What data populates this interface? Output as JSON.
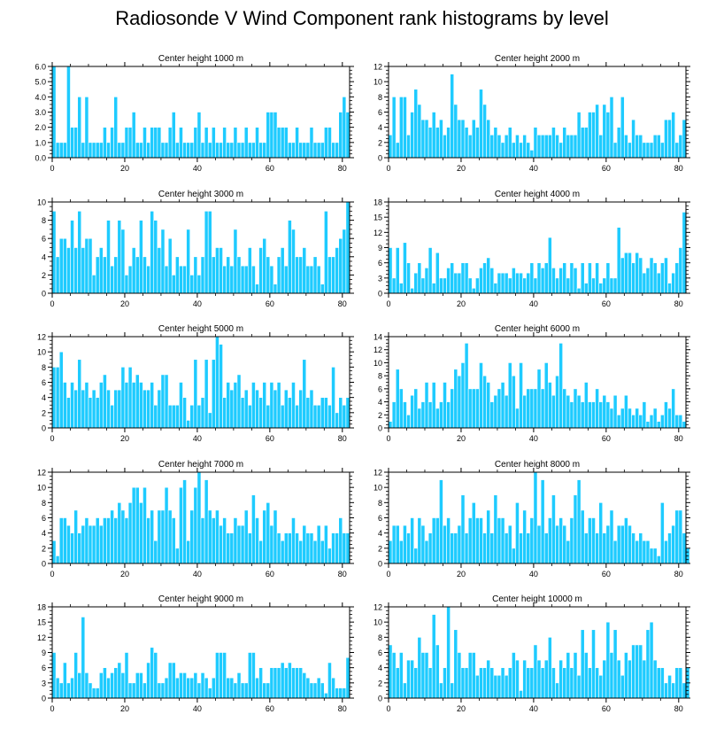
{
  "title": "Radiosonde V Wind Component rank histograms by level",
  "colors": {
    "bar": "#1ecbff",
    "bar_edge": "#ffffff",
    "axis": "#000000"
  },
  "chart_data": [
    {
      "type": "bar",
      "title": "Center height 1000 m",
      "xlim": [
        0,
        82
      ],
      "xticks": [
        0,
        20,
        40,
        60,
        80
      ],
      "ylim": [
        0,
        6
      ],
      "yticks": [
        0,
        1,
        2,
        3,
        4,
        5,
        6
      ],
      "yticklabels": [
        "0.0",
        "1.0",
        "2.0",
        "3.0",
        "4.0",
        "5.0",
        "6.0"
      ],
      "values": [
        6,
        1,
        1,
        1,
        6,
        2,
        2,
        4,
        1,
        4,
        1,
        1,
        1,
        1,
        2,
        1,
        2,
        4,
        1,
        1,
        2,
        2,
        3,
        1,
        1,
        2,
        1,
        2,
        2,
        2,
        1,
        1,
        2,
        3,
        1,
        2,
        1,
        1,
        1,
        2,
        3,
        1,
        2,
        1,
        2,
        1,
        1,
        2,
        1,
        1,
        2,
        1,
        1,
        2,
        1,
        1,
        2,
        1,
        1,
        3,
        3,
        3,
        2,
        2,
        2,
        1,
        1,
        2,
        1,
        1,
        1,
        2,
        1,
        1,
        1,
        2,
        2,
        1,
        1,
        3,
        4,
        3
      ]
    },
    {
      "type": "bar",
      "title": "Center height 2000 m",
      "xlim": [
        0,
        82
      ],
      "xticks": [
        0,
        20,
        40,
        60,
        80
      ],
      "ylim": [
        0,
        12
      ],
      "yticks": [
        0,
        2,
        4,
        6,
        8,
        10,
        12
      ],
      "values": [
        3,
        8,
        2,
        8,
        8,
        3,
        6,
        9,
        7,
        5,
        5,
        4,
        6,
        4,
        5,
        3,
        4,
        11,
        7,
        5,
        5,
        4,
        3,
        5,
        4,
        9,
        7,
        5,
        3,
        4,
        3,
        2,
        3,
        4,
        2,
        3,
        2,
        3,
        2,
        1,
        4,
        3,
        3,
        3,
        3,
        4,
        3,
        2,
        4,
        3,
        3,
        3,
        6,
        4,
        4,
        6,
        6,
        7,
        3,
        7,
        6,
        8,
        2,
        4,
        8,
        3,
        2,
        5,
        3,
        3,
        2,
        2,
        2,
        3,
        3,
        2,
        5,
        5,
        6,
        2,
        3,
        5
      ]
    },
    {
      "type": "bar",
      "title": "Center height 3000 m",
      "xlim": [
        0,
        82
      ],
      "xticks": [
        0,
        20,
        40,
        60,
        80
      ],
      "ylim": [
        0,
        10
      ],
      "yticks": [
        0,
        2,
        4,
        6,
        8,
        10
      ],
      "values": [
        9,
        4,
        6,
        6,
        5,
        8,
        5,
        9,
        5,
        6,
        6,
        2,
        4,
        5,
        4,
        8,
        3,
        4,
        8,
        7,
        2,
        3,
        5,
        4,
        8,
        4,
        3,
        9,
        8,
        5,
        7,
        3,
        6,
        2,
        4,
        3,
        3,
        7,
        2,
        4,
        2,
        4,
        9,
        9,
        4,
        5,
        5,
        3,
        4,
        3,
        7,
        4,
        3,
        3,
        5,
        3,
        1,
        5,
        6,
        4,
        3,
        1,
        4,
        5,
        3,
        8,
        7,
        4,
        4,
        5,
        3,
        3,
        4,
        3,
        1,
        9,
        4,
        4,
        5,
        6,
        7,
        10
      ]
    },
    {
      "type": "bar",
      "title": "Center height 4000 m",
      "xlim": [
        0,
        82
      ],
      "xticks": [
        0,
        20,
        40,
        60,
        80
      ],
      "ylim": [
        0,
        18
      ],
      "yticks": [
        0,
        3,
        6,
        9,
        12,
        15,
        18
      ],
      "yticklabels": [
        "0",
        "3",
        "6",
        "9",
        "12",
        "15",
        "18"
      ],
      "values": [
        9,
        3,
        9,
        2,
        10,
        6,
        1,
        4,
        6,
        3,
        5,
        9,
        2,
        8,
        3,
        3,
        5,
        6,
        4,
        4,
        6,
        6,
        3,
        1,
        3,
        5,
        6,
        7,
        5,
        2,
        4,
        4,
        4,
        3,
        5,
        4,
        4,
        3,
        4,
        6,
        3,
        6,
        5,
        6,
        11,
        5,
        3,
        5,
        6,
        3,
        6,
        5,
        1,
        6,
        2,
        6,
        3,
        6,
        2,
        3,
        6,
        3,
        3,
        13,
        7,
        8,
        8,
        6,
        8,
        7,
        4,
        5,
        7,
        6,
        4,
        6,
        7,
        2,
        4,
        6,
        9,
        16
      ]
    },
    {
      "type": "bar",
      "title": "Center height 5000 m",
      "xlim": [
        0,
        82
      ],
      "xticks": [
        0,
        20,
        40,
        60,
        80
      ],
      "ylim": [
        0,
        12
      ],
      "yticks": [
        0,
        2,
        4,
        6,
        8,
        10,
        12
      ],
      "values": [
        8,
        8,
        10,
        6,
        4,
        6,
        5,
        9,
        5,
        6,
        4,
        5,
        4,
        6,
        7,
        5,
        3,
        5,
        5,
        8,
        6,
        8,
        6,
        7,
        6,
        5,
        5,
        6,
        3,
        5,
        7,
        7,
        3,
        3,
        3,
        6,
        4,
        1,
        3,
        9,
        3,
        4,
        9,
        2,
        9,
        12,
        11,
        4,
        6,
        5,
        6,
        7,
        4,
        5,
        3,
        6,
        5,
        4,
        6,
        3,
        6,
        5,
        6,
        3,
        5,
        4,
        6,
        3,
        5,
        9,
        4,
        5,
        3,
        3,
        4,
        4,
        3,
        8,
        2,
        4,
        3,
        4
      ]
    },
    {
      "type": "bar",
      "title": "Center height 6000 m",
      "xlim": [
        0,
        82
      ],
      "xticks": [
        0,
        20,
        40,
        60,
        80
      ],
      "ylim": [
        0,
        14
      ],
      "yticks": [
        0,
        2,
        4,
        6,
        8,
        10,
        12,
        14
      ],
      "values": [
        1,
        4,
        9,
        6,
        4,
        2,
        5,
        6,
        3,
        4,
        7,
        4,
        7,
        3,
        4,
        7,
        4,
        6,
        9,
        8,
        10,
        13,
        6,
        6,
        6,
        10,
        8,
        7,
        4,
        5,
        6,
        7,
        5,
        10,
        8,
        3,
        10,
        5,
        6,
        6,
        6,
        9,
        6,
        10,
        7,
        5,
        8,
        13,
        6,
        5,
        4,
        6,
        5,
        4,
        7,
        4,
        4,
        6,
        4,
        5,
        4,
        3,
        5,
        2,
        3,
        5,
        3,
        2,
        3,
        2,
        4,
        1,
        2,
        3,
        1,
        2,
        4,
        3,
        6,
        2,
        2,
        1
      ]
    },
    {
      "type": "bar",
      "title": "Center height 7000 m",
      "xlim": [
        0,
        82
      ],
      "xticks": [
        0,
        20,
        40,
        60,
        80
      ],
      "ylim": [
        0,
        12
      ],
      "yticks": [
        0,
        2,
        4,
        6,
        8,
        10,
        12
      ],
      "values": [
        3,
        1,
        6,
        6,
        5,
        4,
        7,
        4,
        5,
        6,
        5,
        5,
        6,
        5,
        6,
        6,
        7,
        6,
        8,
        7,
        6,
        8,
        10,
        10,
        8,
        10,
        6,
        7,
        3,
        7,
        7,
        10,
        7,
        6,
        2,
        10,
        11,
        3,
        7,
        10,
        12,
        6,
        11,
        7,
        6,
        7,
        5,
        6,
        4,
        4,
        6,
        5,
        5,
        7,
        4,
        9,
        6,
        3,
        7,
        8,
        5,
        7,
        4,
        3,
        4,
        4,
        6,
        4,
        3,
        5,
        4,
        4,
        3,
        5,
        3,
        5,
        2,
        4,
        4,
        6,
        4,
        4
      ]
    },
    {
      "type": "bar",
      "title": "Center height 8000 m",
      "xlim": [
        0,
        82
      ],
      "xticks": [
        0,
        20,
        40,
        60,
        80
      ],
      "ylim": [
        0,
        12
      ],
      "yticks": [
        0,
        2,
        4,
        6,
        8,
        10,
        12
      ],
      "values": [
        3,
        5,
        5,
        3,
        5,
        4,
        6,
        2,
        6,
        5,
        3,
        4,
        6,
        6,
        11,
        5,
        6,
        4,
        4,
        5,
        9,
        4,
        6,
        8,
        6,
        6,
        4,
        7,
        4,
        9,
        6,
        6,
        4,
        5,
        2,
        8,
        4,
        7,
        4,
        6,
        12,
        5,
        11,
        4,
        6,
        9,
        5,
        6,
        5,
        3,
        6,
        9,
        11,
        7,
        4,
        6,
        6,
        4,
        8,
        4,
        5,
        7,
        3,
        5,
        5,
        6,
        5,
        4,
        3,
        4,
        3,
        3,
        2,
        2,
        1,
        8,
        3,
        4,
        5,
        7,
        7,
        4,
        2
      ]
    },
    {
      "type": "bar",
      "title": "Center height 9000 m",
      "xlim": [
        0,
        82
      ],
      "xticks": [
        0,
        20,
        40,
        60,
        80
      ],
      "ylim": [
        0,
        18
      ],
      "yticks": [
        0,
        3,
        6,
        9,
        12,
        15,
        18
      ],
      "yticklabels": [
        "0",
        "3",
        "6",
        "9",
        "12",
        "15",
        "18"
      ],
      "values": [
        9,
        4,
        3,
        7,
        3,
        4,
        9,
        5,
        16,
        5,
        3,
        2,
        2,
        5,
        6,
        4,
        5,
        6,
        7,
        5,
        9,
        3,
        3,
        5,
        5,
        3,
        7,
        10,
        9,
        3,
        3,
        4,
        7,
        7,
        4,
        5,
        5,
        4,
        4,
        5,
        3,
        5,
        4,
        2,
        4,
        9,
        9,
        9,
        4,
        4,
        3,
        5,
        3,
        3,
        9,
        9,
        4,
        6,
        3,
        3,
        6,
        6,
        6,
        7,
        6,
        7,
        6,
        6,
        6,
        5,
        4,
        3,
        3,
        4,
        3,
        1,
        7,
        4,
        2,
        2,
        2,
        8
      ]
    },
    {
      "type": "bar",
      "title": "Center height 10000 m",
      "xlim": [
        0,
        82
      ],
      "xticks": [
        0,
        20,
        40,
        60,
        80
      ],
      "ylim": [
        0,
        12
      ],
      "yticks": [
        0,
        2,
        4,
        6,
        8,
        10,
        12
      ],
      "values": [
        7,
        6,
        4,
        6,
        2,
        5,
        5,
        4,
        8,
        6,
        6,
        4,
        11,
        7,
        2,
        4,
        12,
        2,
        9,
        6,
        4,
        4,
        6,
        6,
        3,
        4,
        4,
        5,
        4,
        3,
        3,
        4,
        3,
        4,
        6,
        5,
        1,
        5,
        4,
        4,
        7,
        5,
        4,
        5,
        8,
        4,
        2,
        5,
        4,
        6,
        4,
        6,
        3,
        9,
        6,
        4,
        9,
        4,
        3,
        5,
        10,
        6,
        9,
        5,
        3,
        6,
        5,
        7,
        7,
        7,
        5,
        9,
        10,
        5,
        4,
        4,
        2,
        3,
        2,
        4,
        4,
        2,
        4
      ]
    }
  ]
}
